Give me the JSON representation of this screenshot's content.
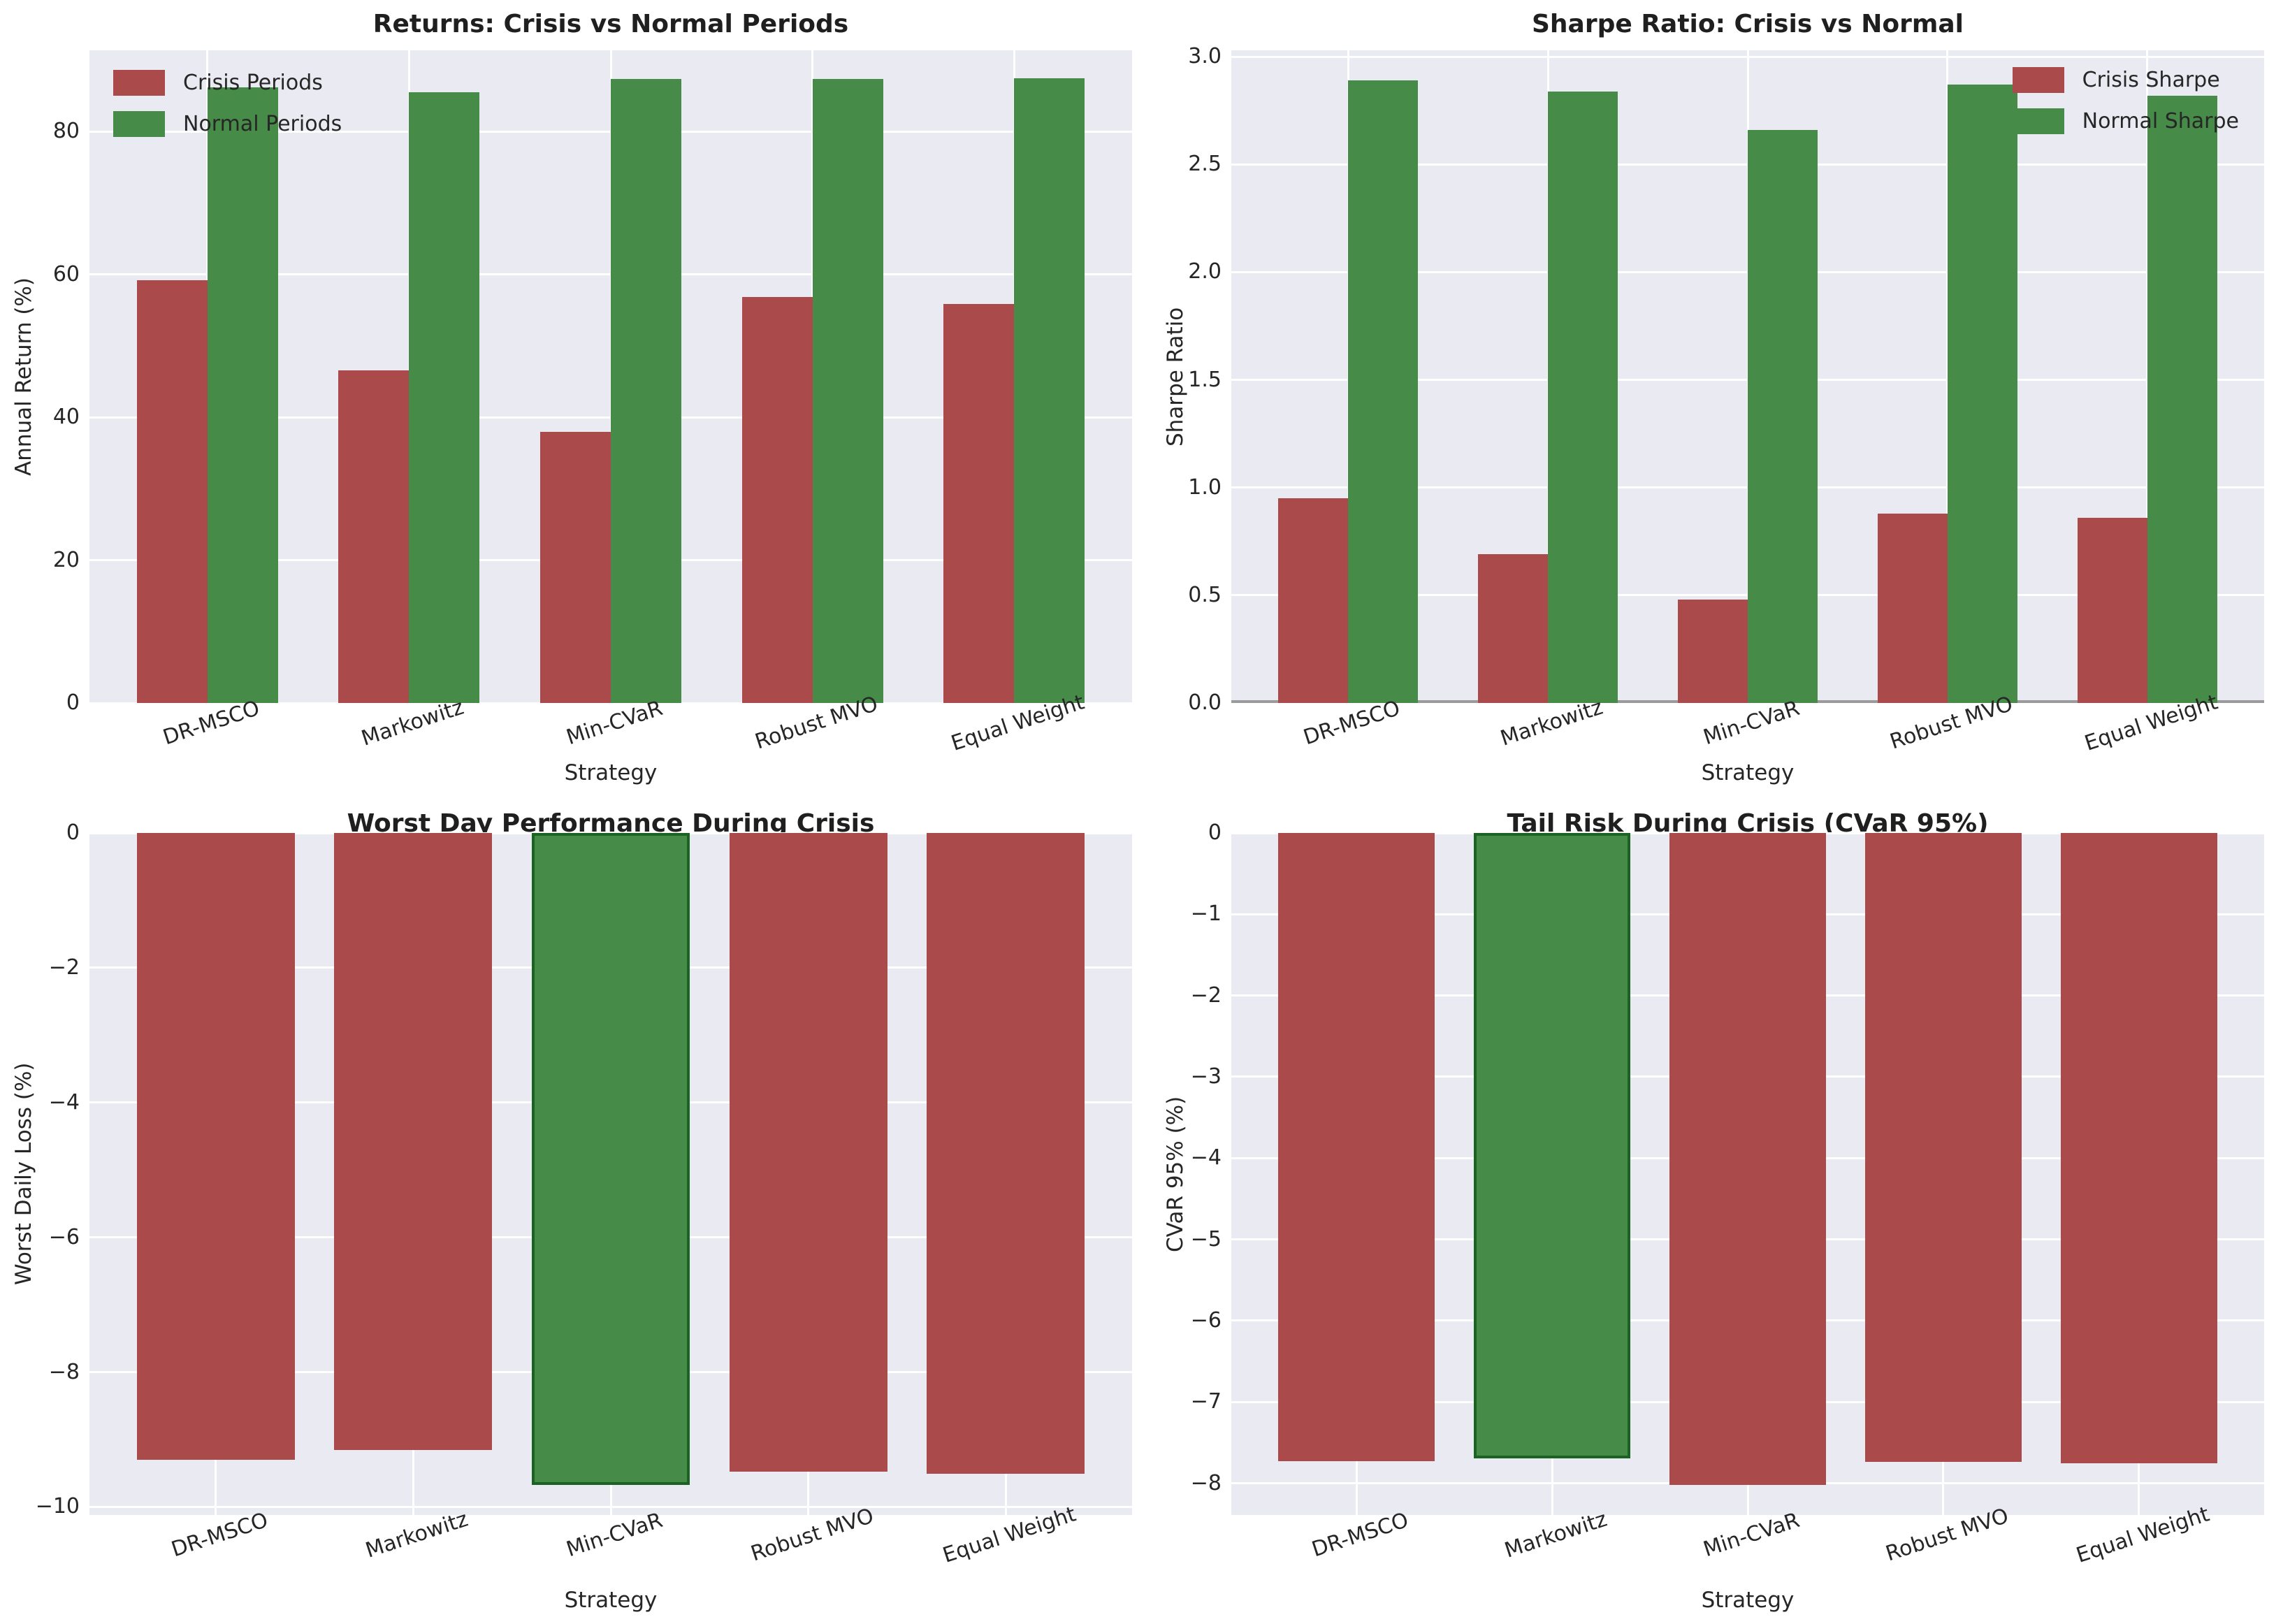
{
  "figure": {
    "background": "#ffffff",
    "axes_background": "#eaeaf2",
    "grid_color": "#ffffff",
    "text_color": "#262626",
    "palette": {
      "crisis": "#ab4a4b",
      "normal": "#478b48",
      "highlight": "#478b48",
      "highlight_edge": "#1b6322",
      "zero_line": "#9b9b9b"
    }
  },
  "chart_data": [
    {
      "type": "bar",
      "variant": "grouped",
      "title": "Returns: Crisis vs Normal Periods",
      "xlabel": "Strategy",
      "ylabel": "Annual Return (%)",
      "categories": [
        "DR-MSCO",
        "Markowitz",
        "Min-CVaR",
        "Robust MVO",
        "Equal Weight"
      ],
      "series": [
        {
          "name": "Crisis Periods",
          "color": "crisis",
          "values": [
            59.2,
            46.6,
            38.0,
            56.9,
            55.9
          ]
        },
        {
          "name": "Normal Periods",
          "color": "normal",
          "values": [
            86.2,
            85.5,
            87.4,
            87.4,
            87.5
          ]
        }
      ],
      "ylim": [
        0,
        91.4
      ],
      "yticks": [
        0,
        20,
        40,
        60,
        80
      ],
      "ytick_labels": [
        "0",
        "20",
        "40",
        "60",
        "80"
      ],
      "grid": true,
      "legend_position": "upper-left",
      "zero_line": false
    },
    {
      "type": "bar",
      "variant": "grouped",
      "title": "Sharpe Ratio: Crisis vs Normal",
      "xlabel": "Strategy",
      "ylabel": "Sharpe Ratio",
      "categories": [
        "DR-MSCO",
        "Markowitz",
        "Min-CVaR",
        "Robust MVO",
        "Equal Weight"
      ],
      "series": [
        {
          "name": "Crisis Sharpe",
          "color": "crisis",
          "values": [
            0.95,
            0.69,
            0.48,
            0.88,
            0.86
          ]
        },
        {
          "name": "Normal Sharpe",
          "color": "normal",
          "values": [
            2.89,
            2.84,
            2.66,
            2.87,
            2.82
          ]
        }
      ],
      "ylim": [
        0,
        3.03
      ],
      "yticks": [
        0.0,
        0.5,
        1.0,
        1.5,
        2.0,
        2.5,
        3.0
      ],
      "ytick_labels": [
        "0.0",
        "0.5",
        "1.0",
        "1.5",
        "2.0",
        "2.5",
        "3.0"
      ],
      "grid": true,
      "legend_position": "upper-right",
      "zero_line": true
    },
    {
      "type": "bar",
      "variant": "single",
      "title": "Worst Day Performance During Crisis",
      "xlabel": "Strategy",
      "ylabel": "Worst Daily Loss (%)",
      "categories": [
        "DR-MSCO",
        "Markowitz",
        "Min-CVaR",
        "Robust MVO",
        "Equal Weight"
      ],
      "values": [
        -9.3,
        -9.16,
        -9.67,
        -9.48,
        -9.51
      ],
      "bar_colors": [
        "crisis",
        "crisis",
        "highlight",
        "crisis",
        "crisis"
      ],
      "highlighted_category": "Min-CVaR",
      "ylim": [
        -10.12,
        0
      ],
      "yticks": [
        0,
        -2,
        -4,
        -6,
        -8,
        -10
      ],
      "ytick_labels": [
        "0",
        "−2",
        "−4",
        "−6",
        "−8",
        "−10"
      ],
      "grid": true,
      "legend_position": null,
      "zero_line": false
    },
    {
      "type": "bar",
      "variant": "single",
      "title": "Tail Risk During Crisis (CVaR 95%)",
      "xlabel": "Strategy",
      "ylabel": "CVaR 95% (%)",
      "categories": [
        "DR-MSCO",
        "Markowitz",
        "Min-CVaR",
        "Robust MVO",
        "Equal Weight"
      ],
      "values": [
        -7.73,
        -7.69,
        -8.02,
        -7.74,
        -7.75
      ],
      "bar_colors": [
        "crisis",
        "highlight",
        "crisis",
        "crisis",
        "crisis"
      ],
      "highlighted_category": "Markowitz",
      "ylim": [
        -8.39,
        0
      ],
      "yticks": [
        0,
        -1,
        -2,
        -3,
        -4,
        -5,
        -6,
        -7,
        -8
      ],
      "ytick_labels": [
        "0",
        "−1",
        "−2",
        "−3",
        "−4",
        "−5",
        "−6",
        "−7",
        "−8"
      ],
      "grid": true,
      "legend_position": null,
      "zero_line": false
    }
  ]
}
